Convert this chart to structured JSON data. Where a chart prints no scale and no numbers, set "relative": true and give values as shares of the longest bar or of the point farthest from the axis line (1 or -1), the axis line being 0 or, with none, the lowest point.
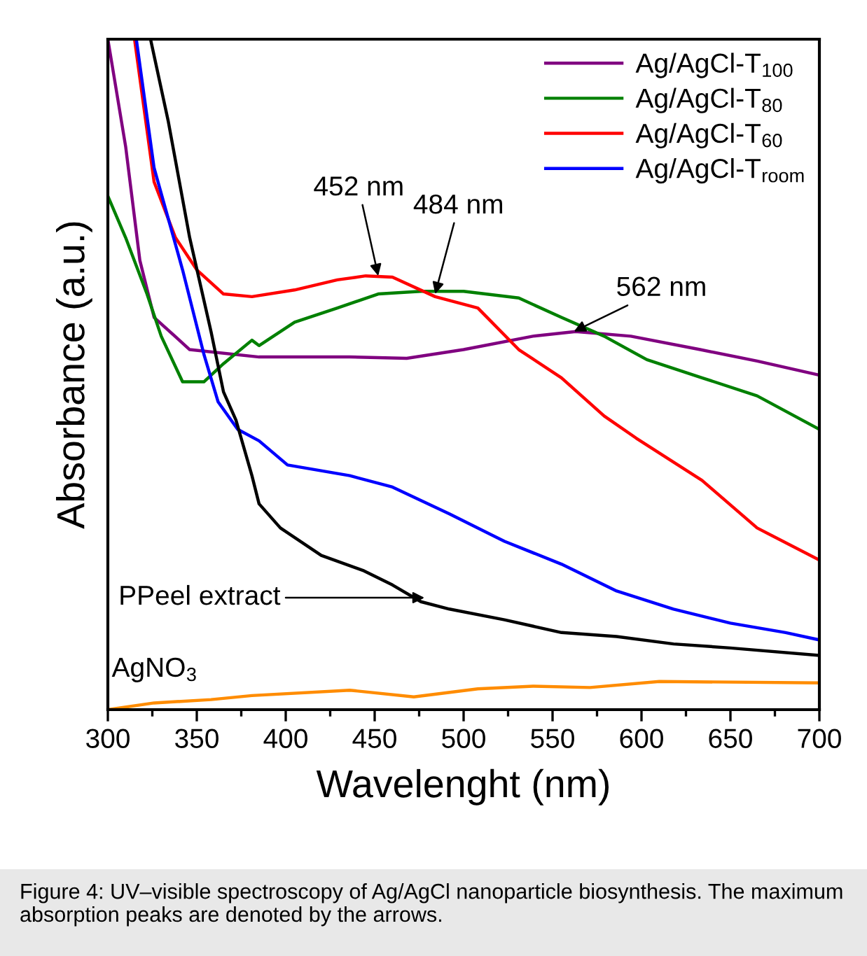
{
  "chart_data": {
    "type": "line",
    "relative": true,
    "xlabel": "Wavelenght (nm)",
    "ylabel": "Absorbance (a.u.)",
    "xlim": [
      300,
      700
    ],
    "xticks": [
      300,
      350,
      400,
      450,
      500,
      550,
      600,
      650,
      700
    ],
    "tick_labels": "x",
    "grid": false,
    "legend": "top right",
    "marker": "none",
    "line_style": "solid",
    "series": [
      {
        "name": "Ag/AgCl-T$_{100}$",
        "color": "#800080",
        "x": [
          300,
          310,
          318,
          326,
          346,
          385,
          436,
          468,
          500,
          539,
          563,
          594,
          633,
          665,
          700
        ],
        "values": [
          1.0,
          0.84,
          0.67,
          0.585,
          0.537,
          0.526,
          0.526,
          0.524,
          0.537,
          0.557,
          0.564,
          0.557,
          0.537,
          0.52,
          0.499
        ]
      },
      {
        "name": "Ag/AgCl-T$_{80}$",
        "color": "#008000",
        "x": [
          300,
          310,
          322,
          330,
          342,
          354,
          365,
          381,
          385,
          405,
          429,
          452,
          476,
          500,
          531,
          555,
          579,
          603,
          634,
          665,
          700
        ],
        "values": [
          0.766,
          0.704,
          0.62,
          0.557,
          0.489,
          0.489,
          0.516,
          0.551,
          0.543,
          0.578,
          0.599,
          0.62,
          0.624,
          0.624,
          0.614,
          0.585,
          0.557,
          0.522,
          0.495,
          0.468,
          0.418
        ]
      },
      {
        "name": "Ag/AgCl-T$_{60}$",
        "color": "#ff0000",
        "x": [
          315,
          326,
          338,
          350,
          365,
          381,
          405,
          429,
          445,
          460,
          484,
          508,
          531,
          555,
          579,
          597,
          634,
          665,
          700
        ],
        "values": [
          1.0,
          0.787,
          0.704,
          0.656,
          0.62,
          0.616,
          0.626,
          0.641,
          0.647,
          0.645,
          0.616,
          0.599,
          0.537,
          0.495,
          0.438,
          0.405,
          0.342,
          0.271,
          0.223
        ]
      },
      {
        "name": "Ag/AgCl-T$_{room}$",
        "color": "#0000ff",
        "x": [
          316,
          326,
          342,
          354,
          362,
          373,
          385,
          401,
          436,
          460,
          492,
          523,
          555,
          586,
          618,
          650,
          681,
          700
        ],
        "values": [
          1.0,
          0.808,
          0.656,
          0.53,
          0.459,
          0.418,
          0.401,
          0.365,
          0.349,
          0.332,
          0.292,
          0.251,
          0.217,
          0.177,
          0.15,
          0.129,
          0.115,
          0.104
        ]
      },
      {
        "color": "#000000",
        "x": [
          324,
          334,
          346,
          358,
          365,
          372,
          381,
          385,
          397,
          420,
          444,
          460,
          476,
          492,
          523,
          555,
          586,
          618,
          650,
          700
        ],
        "values": [
          1.0,
          0.877,
          0.704,
          0.564,
          0.474,
          0.432,
          0.349,
          0.307,
          0.271,
          0.23,
          0.207,
          0.186,
          0.161,
          0.15,
          0.134,
          0.115,
          0.109,
          0.098,
          0.092,
          0.081
        ]
      },
      {
        "color": "#ff8c00",
        "x": [
          300,
          326,
          358,
          381,
          436,
          472,
          508,
          539,
          571,
          610,
          700
        ],
        "values": [
          0.0,
          0.01,
          0.015,
          0.021,
          0.029,
          0.019,
          0.031,
          0.035,
          0.033,
          0.042,
          0.04
        ]
      }
    ],
    "annotations": [
      {
        "text": "452 nm",
        "x": 452,
        "y": 0.647
      },
      {
        "text": "484 nm",
        "x": 484,
        "y": 0.62
      },
      {
        "text": "562 nm",
        "x": 562,
        "y": 0.564
      },
      "PPeel extract",
      {
        "text": "AgNO$_{3}$",
        "x": 300,
        "y": 0.0
      },
      "Figure 4: UV–visible spectroscopy of Ag/AgCl nanoparticle biosynthesis. The maximum absorption peaks are denoted by the arrows."
    ]
  }
}
